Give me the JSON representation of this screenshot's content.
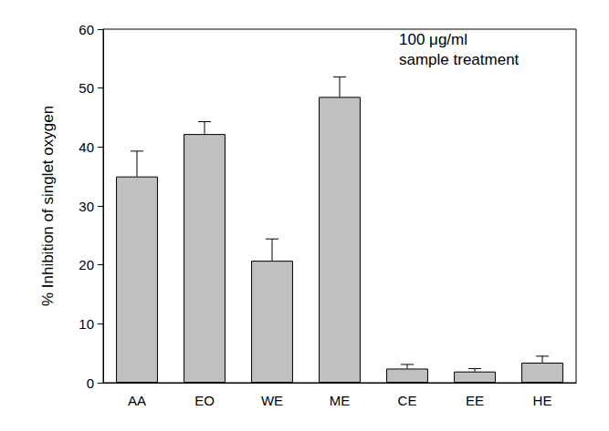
{
  "chart_data": {
    "type": "bar",
    "y_label": "% Inhibition of singlet oxygen",
    "annotation": [
      "100 μg/ml",
      "sample treatment"
    ],
    "categories": [
      "AA",
      "EO",
      "WE",
      "ME",
      "CE",
      "EE",
      "HE"
    ],
    "values": [
      35.0,
      42.2,
      20.7,
      48.5,
      2.4,
      1.9,
      3.4
    ],
    "errors": [
      4.3,
      2.1,
      3.7,
      3.4,
      0.7,
      0.5,
      1.1
    ],
    "color": "#c0c0c0",
    "ylim": [
      0,
      60
    ],
    "yticks": [
      0,
      10,
      20,
      30,
      40,
      50,
      60
    ],
    "grid": false
  }
}
